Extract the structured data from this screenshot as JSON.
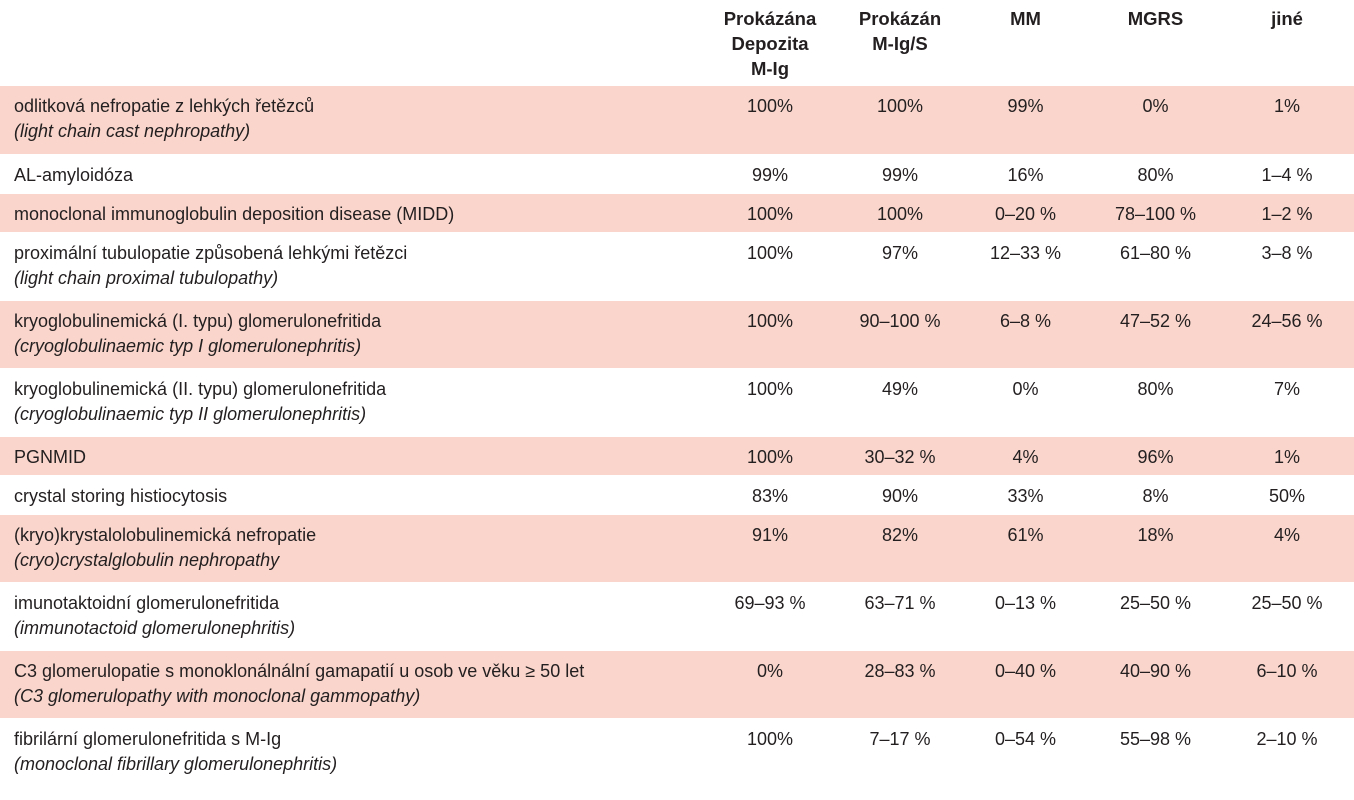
{
  "table": {
    "headers": [
      {
        "key": "desc",
        "label": ""
      },
      {
        "key": "deposits",
        "label": "Prokázána Depozita M-Ig"
      },
      {
        "key": "mig",
        "label": "Prokázán M-Ig/S"
      },
      {
        "key": "mm",
        "label": "MM"
      },
      {
        "key": "mgrs",
        "label": "MGRS"
      },
      {
        "key": "other",
        "label": "jiné"
      }
    ],
    "header_lines": {
      "deposits": [
        "Prokázána",
        "Depozita",
        "M-Ig"
      ],
      "mig": [
        "Prokázán",
        "M-Ig/S"
      ],
      "mm": [
        "MM"
      ],
      "mgrs": [
        "MGRS"
      ],
      "other": [
        "jiné"
      ]
    },
    "shade_color": "#f9d5cb",
    "rows": [
      {
        "name": "odlitková nefropatie z lehkých řetězců",
        "name_en": "(light chain cast nephropathy)",
        "shaded": true,
        "values": [
          "100%",
          "100%",
          "99%",
          "0%",
          "1%"
        ]
      },
      {
        "name": "AL-amyloidóza",
        "name_en": "",
        "shaded": false,
        "values": [
          "99%",
          "99%",
          "16%",
          "80%",
          "1–4 %"
        ]
      },
      {
        "name": "monoclonal immunoglobulin deposition disease (MIDD)",
        "name_en": "",
        "shaded": true,
        "values": [
          "100%",
          "100%",
          "0–20 %",
          "78–100 %",
          "1–2 %"
        ]
      },
      {
        "name": "proximální tubulopatie způsobená lehkými řetězci",
        "name_en": "(light chain proximal tubulopathy)",
        "shaded": false,
        "values": [
          "100%",
          "97%",
          "12–33 %",
          "61–80 %",
          "3–8 %"
        ]
      },
      {
        "name": "kryoglobulinemická (I. typu) glomerulonefritida",
        "name_en": "(cryoglobulinaemic typ I glomerulonephritis)",
        "shaded": true,
        "values": [
          "100%",
          "90–100 %",
          "6–8 %",
          "47–52 %",
          "24–56 %"
        ]
      },
      {
        "name": "kryoglobulinemická (II. typu) glomerulonefritida",
        "name_en": "(cryoglobulinaemic typ II glomerulonephritis)",
        "shaded": false,
        "values": [
          "100%",
          "49%",
          "0%",
          "80%",
          "7%"
        ]
      },
      {
        "name": "PGNMID",
        "name_en": "",
        "shaded": true,
        "values": [
          "100%",
          "30–32 %",
          "4%",
          "96%",
          "1%"
        ]
      },
      {
        "name": "crystal storing histiocytosis",
        "name_en": "",
        "shaded": false,
        "values": [
          "83%",
          "90%",
          "33%",
          "8%",
          "50%"
        ]
      },
      {
        "name": "(kryo)krystalolobulinemická nefropatie",
        "name_en": "(cryo)crystalglobulin nephropathy",
        "shaded": true,
        "values": [
          "91%",
          "82%",
          "61%",
          "18%",
          "4%"
        ]
      },
      {
        "name": "imunotaktoidní glomerulonefritida",
        "name_en": "(immunotactoid glomerulonephritis)",
        "shaded": false,
        "values": [
          "69–93 %",
          "63–71 %",
          "0–13 %",
          "25–50 %",
          "25–50 %"
        ]
      },
      {
        "name": "C3 glomerulopatie s monoklonálnální gamapatií u osob ve věku ≥ 50 let",
        "name_en": "(C3 glomerulopathy with monoclonal gammopathy)",
        "shaded": true,
        "values": [
          "0%",
          "28–83 %",
          "0–40 %",
          "40–90 %",
          "6–10 %"
        ]
      },
      {
        "name": "fibrilární glomerulonefritida s M-Ig",
        "name_en": "(monoclonal fibrillary glomerulonephritis)",
        "shaded": false,
        "values": [
          "100%",
          "7–17 %",
          "0–54 %",
          "55–98 %",
          "2–10 %"
        ]
      }
    ]
  }
}
